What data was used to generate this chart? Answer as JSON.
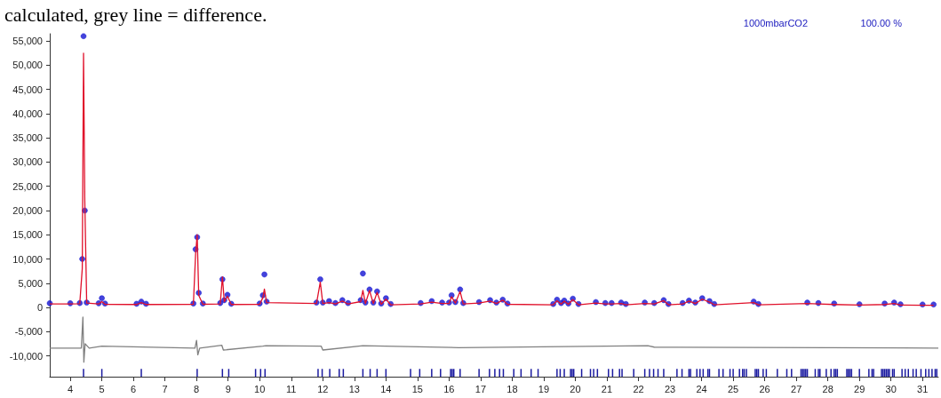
{
  "chart_data": {
    "type": "scatter",
    "title": "calculated, grey line = difference.",
    "annotations": [
      "1000mbarCO2",
      "100.00 %"
    ],
    "x": [
      3.35,
      4.0,
      4.3,
      4.38,
      4.42,
      4.46,
      4.52,
      4.9,
      5.0,
      5.1,
      6.1,
      6.25,
      6.4,
      7.9,
      7.97,
      8.02,
      8.07,
      8.2,
      8.75,
      8.82,
      8.88,
      8.98,
      9.1,
      10.0,
      10.1,
      10.15,
      10.22,
      11.8,
      11.92,
      12.0,
      12.2,
      12.4,
      12.62,
      12.8,
      13.2,
      13.27,
      13.35,
      13.48,
      13.6,
      13.72,
      13.85,
      14.0,
      14.15,
      15.1,
      15.45,
      15.78,
      16.0,
      16.08,
      16.2,
      16.35,
      16.45,
      16.95,
      17.3,
      17.5,
      17.7,
      17.85,
      19.3,
      19.42,
      19.55,
      19.65,
      19.78,
      19.92,
      20.1,
      20.65,
      20.95,
      21.15,
      21.45,
      21.6,
      22.2,
      22.5,
      22.8,
      22.95,
      23.4,
      23.6,
      23.8,
      24.02,
      24.25,
      24.4,
      25.65,
      25.8,
      27.35,
      27.7,
      28.2,
      29.0,
      29.8,
      30.1,
      30.3,
      31.0,
      31.35
    ],
    "series": [
      {
        "marker": "circle",
        "color": "#1414d2",
        "values": [
          850,
          850,
          900,
          10000,
          56000,
          20000,
          1000,
          850,
          1900,
          800,
          750,
          1200,
          750,
          800,
          12000,
          14500,
          3000,
          800,
          900,
          5800,
          1500,
          2600,
          750,
          800,
          2500,
          6800,
          1200,
          1000,
          5800,
          1000,
          1300,
          900,
          1500,
          900,
          1500,
          7000,
          1000,
          3700,
          1000,
          3300,
          800,
          1900,
          700,
          900,
          1300,
          1000,
          1000,
          2500,
          1100,
          3700,
          900,
          1100,
          1500,
          1000,
          1600,
          800,
          700,
          1600,
          900,
          1400,
          800,
          1800,
          700,
          1100,
          900,
          900,
          1000,
          700,
          1000,
          900,
          1500,
          700,
          900,
          1400,
          1000,
          1900,
          1300,
          700,
          1200,
          700,
          1000,
          900,
          800,
          650,
          800,
          1000,
          650,
          600,
          600
        ]
      },
      {
        "type": "line",
        "color": "#e0102a",
        "values": [
          700,
          700,
          750,
          8000,
          52500,
          22000,
          900,
          700,
          1200,
          650,
          600,
          1000,
          600,
          650,
          11000,
          15000,
          2500,
          650,
          700,
          6300,
          1200,
          2300,
          600,
          650,
          2000,
          3800,
          1000,
          800,
          5200,
          800,
          1000,
          700,
          1300,
          700,
          1200,
          3500,
          800,
          3500,
          800,
          3100,
          650,
          1700,
          550,
          700,
          1100,
          800,
          800,
          2200,
          900,
          3300,
          700,
          900,
          1300,
          800,
          1500,
          650,
          550,
          1400,
          700,
          1300,
          650,
          1600,
          550,
          900,
          700,
          700,
          800,
          550,
          800,
          700,
          1400,
          550,
          700,
          1300,
          800,
          1700,
          1100,
          550,
          1000,
          550,
          800,
          700,
          600,
          500,
          600,
          800,
          500,
          450,
          450
        ]
      },
      {
        "type": "line",
        "color": "#808080",
        "x": [
          3.35,
          4.35,
          4.4,
          4.43,
          4.47,
          4.6,
          5.0,
          7.95,
          8.0,
          8.04,
          8.1,
          8.8,
          8.85,
          10.1,
          10.2,
          11.95,
          12.0,
          13.27,
          16.3,
          22.3,
          22.5,
          31.5
        ],
        "values": [
          -8400,
          -8400,
          -2000,
          -11300,
          -7500,
          -8400,
          -8000,
          -8400,
          -6800,
          -9800,
          -8400,
          -7800,
          -8800,
          -8000,
          -7900,
          -8000,
          -8800,
          -7900,
          -8300,
          -7900,
          -8200,
          -8400
        ]
      },
      {
        "type": "bar",
        "color": "#1a1aa0",
        "base": [
          -14300,
          -14300,
          -14300,
          -14300,
          -14300,
          -14300,
          -14300,
          -14300,
          -14300,
          -14300,
          -14300,
          -14300,
          -14300,
          -14300,
          -14300,
          -14300,
          -14300,
          -14300,
          -14300,
          -14300,
          -14300,
          -14300,
          -14300,
          -14300,
          -14300,
          -14300,
          -14300,
          -14300,
          -14300,
          -14300,
          -14300,
          -14300,
          -14300,
          -14300,
          -14300,
          -14300,
          -14300,
          -14300,
          -14300,
          -14300,
          -14300,
          -14300,
          -14300,
          -14300,
          -14300,
          -14300,
          -14300,
          -14300,
          -14300,
          -14300,
          -14300,
          -14300,
          -14300,
          -14300,
          -14300,
          -14300,
          -14300,
          -14300,
          -14300,
          -14300,
          -14300,
          -14300,
          -14300,
          -14300,
          -14300,
          -14300,
          -14300,
          -14300,
          -14300,
          -14300,
          -14300,
          -14300,
          -14300,
          -14300,
          -14300,
          -14300,
          -14300,
          -14300,
          -14300,
          -14300,
          -14300,
          -14300,
          -14300,
          -14300,
          -14300,
          -14300,
          -14300,
          -14300,
          -14300,
          -14300,
          -14300,
          -14300,
          -14300,
          -14300,
          -14300,
          -14300,
          -14300,
          -14300,
          -14300,
          -14300,
          -14300,
          -14300,
          -14300,
          -14300,
          -14300,
          -14300,
          -14300,
          -14300,
          -14300,
          -14300,
          -14300,
          -14300,
          -14300,
          -14300,
          -14300,
          -14300,
          -14300,
          -14300,
          -14300,
          -14300
        ],
        "x": [
          4.42,
          5.0,
          6.25,
          8.02,
          8.82,
          9.02,
          9.87,
          10.03,
          10.17,
          11.85,
          11.98,
          12.22,
          12.52,
          12.65,
          13.27,
          13.5,
          13.72,
          14.0,
          14.78,
          15.07,
          15.45,
          15.73,
          16.05,
          16.1,
          16.15,
          16.35,
          16.95,
          17.28,
          17.45,
          17.6,
          17.72,
          18.05,
          18.28,
          18.6,
          18.82,
          19.42,
          19.52,
          19.65,
          19.85,
          19.9,
          19.95,
          20.2,
          20.48,
          20.58,
          20.7,
          21.05,
          21.18,
          21.4,
          21.48,
          21.85,
          22.2,
          22.35,
          22.48,
          22.62,
          22.8,
          23.22,
          23.38,
          23.6,
          23.65,
          23.85,
          23.95,
          24.05,
          24.2,
          24.25,
          24.55,
          24.68,
          24.9,
          25.0,
          25.2,
          25.3,
          25.35,
          25.42,
          25.7,
          25.75,
          25.8,
          25.95,
          26.05,
          26.4,
          26.7,
          26.85,
          27.15,
          27.2,
          27.25,
          27.3,
          27.35,
          27.6,
          27.7,
          27.75,
          27.95,
          28.1,
          28.2,
          28.25,
          28.3,
          28.6,
          28.65,
          28.7,
          28.75,
          29.0,
          29.3,
          29.4,
          29.45,
          29.7,
          29.75,
          29.8,
          29.85,
          29.9,
          29.95,
          30.05,
          30.1,
          30.35,
          30.45,
          30.55,
          30.7,
          30.8,
          30.95,
          31.1,
          31.2,
          31.3,
          31.4,
          31.45
        ],
        "values": [
          1600,
          1600,
          1600,
          1600,
          1600,
          1600,
          1600,
          1600,
          1600,
          1600,
          1600,
          1600,
          1600,
          1600,
          1600,
          1600,
          1600,
          1600,
          1600,
          1600,
          1600,
          1600,
          1600,
          1600,
          1600,
          1600,
          1600,
          1600,
          1600,
          1600,
          1600,
          1600,
          1600,
          1600,
          1600,
          1600,
          1600,
          1600,
          1600,
          1600,
          1600,
          1600,
          1600,
          1600,
          1600,
          1600,
          1600,
          1600,
          1600,
          1600,
          1600,
          1600,
          1600,
          1600,
          1600,
          1600,
          1600,
          1600,
          1600,
          1600,
          1600,
          1600,
          1600,
          1600,
          1600,
          1600,
          1600,
          1600,
          1600,
          1600,
          1600,
          1600,
          1600,
          1600,
          1600,
          1600,
          1600,
          1600,
          1600,
          1600,
          1600,
          1600,
          1600,
          1600,
          1600,
          1600,
          1600,
          1600,
          1600,
          1600,
          1600,
          1600,
          1600,
          1600,
          1600,
          1600,
          1600,
          1600,
          1600,
          1600,
          1600,
          1600,
          1600,
          1600,
          1600,
          1600,
          1600,
          1600,
          1600,
          1600,
          1600,
          1600,
          1600,
          1600,
          1600,
          1600,
          1600,
          1600,
          1600,
          1600
        ]
      }
    ],
    "xlim": [
      3.35,
      31.5
    ],
    "xticks": [
      4,
      5,
      6,
      7,
      8,
      9,
      10,
      11,
      12,
      13,
      14,
      15,
      16,
      17,
      18,
      19,
      20,
      21,
      22,
      23,
      24,
      25,
      26,
      27,
      28,
      29,
      30,
      31
    ],
    "ylim": [
      -14300,
      56500
    ],
    "yticks": [
      {
        "value": -10000,
        "label": "-10,000"
      },
      {
        "value": -5000,
        "label": "-5,000"
      },
      0,
      {
        "value": 5000,
        "label": "5,000"
      },
      {
        "value": 10000,
        "label": "10,000"
      },
      {
        "value": 15000,
        "label": "15,000"
      },
      {
        "value": 20000,
        "label": "20,000"
      },
      {
        "value": 25000,
        "label": "25,000"
      },
      {
        "value": 30000,
        "label": "30,000"
      },
      {
        "value": 35000,
        "label": "35,000"
      },
      {
        "value": 40000,
        "label": "40,000"
      },
      {
        "value": 45000,
        "label": "45,000"
      },
      {
        "value": 50000,
        "label": "50,000"
      },
      {
        "value": 55000,
        "label": "55,000"
      }
    ],
    "grid": false
  }
}
